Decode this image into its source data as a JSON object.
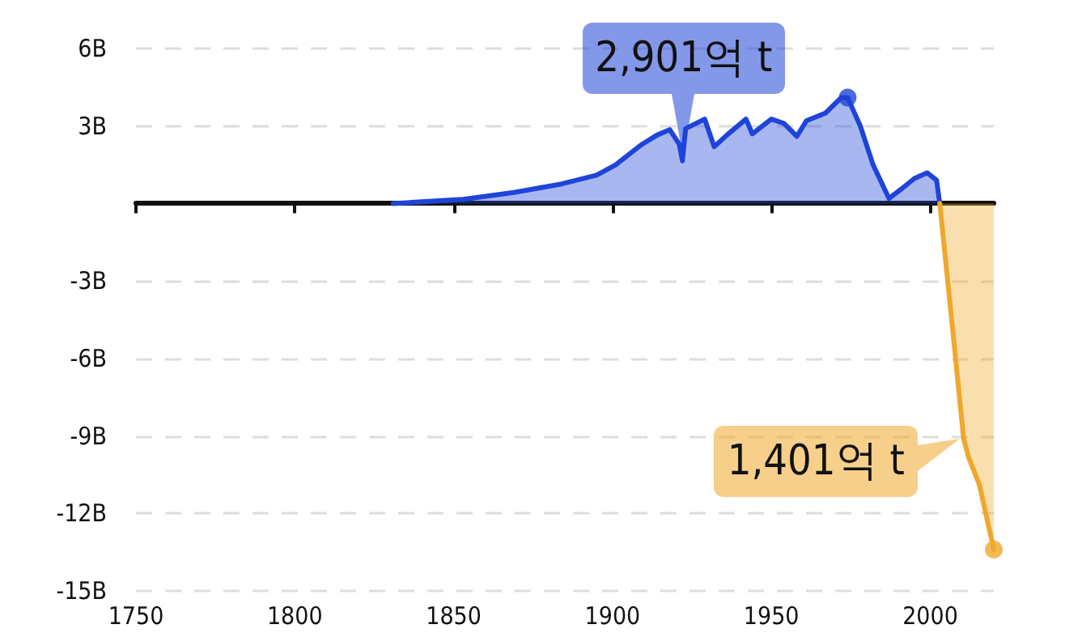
{
  "chart_data": {
    "type": "area",
    "series": [
      {
        "color": "#1f44d8",
        "x": [
          1831,
          1853,
          1869,
          1884,
          1895,
          1901,
          1909,
          1914,
          1918,
          1921,
          1922,
          1923,
          1929,
          1932,
          1936,
          1942,
          1944,
          1950,
          1954,
          1958,
          1961,
          1967,
          1972,
          1974,
          1978,
          1982,
          1987,
          1991,
          1995,
          1999,
          2002,
          2003
        ],
        "values": [
          0,
          0.16,
          0.43,
          0.76,
          1.1,
          1.5,
          2.27,
          2.65,
          2.86,
          2.3,
          1.65,
          2.9,
          3.27,
          2.2,
          2.65,
          3.27,
          2.7,
          3.27,
          3.1,
          2.6,
          3.2,
          3.5,
          4.1,
          4.1,
          3.0,
          1.5,
          0.2,
          0.57,
          0.97,
          1.19,
          0.9,
          0
        ]
      },
      {
        "color": "#efa82c",
        "x": [
          2003,
          2007,
          2010.5,
          2012,
          2015.5,
          2020
        ],
        "values": [
          0,
          -4.8,
          -9.1,
          -9.8,
          -10.9,
          -13.4
        ]
      },
      {
        "type": "scatter",
        "marker": "circle",
        "color": "#1f44d8",
        "x": [
          1974
        ],
        "values": [
          4.1
        ]
      },
      {
        "type": "scatter",
        "marker": "circle",
        "color": "#efa82c",
        "x": [
          2020
        ],
        "values": [
          -13.4
        ]
      }
    ],
    "xlim": [
      1750,
      2020
    ],
    "xticks": [
      1750,
      1800,
      1850,
      1900,
      1950,
      2000
    ],
    "ylim": [
      -15,
      6
    ],
    "yticks": [
      {
        "value": -15,
        "label": "-15B"
      },
      {
        "value": -12,
        "label": "-12B"
      },
      {
        "value": -9,
        "label": "-9B"
      },
      {
        "value": -6,
        "label": "-6B"
      },
      {
        "value": -3,
        "label": "-3B"
      },
      {
        "value": 0,
        "label": null
      },
      {
        "value": 3,
        "label": "3B"
      },
      {
        "value": 6,
        "label": "6B"
      }
    ],
    "grid": "y",
    "marker": "none",
    "line_style": "solid",
    "annotations": [
      {
        "text": "2,901억 t",
        "x": 1922,
        "y": 1.65
      },
      {
        "text": "1,401억 t",
        "x": 2010.5,
        "y": -9.1
      }
    ]
  }
}
